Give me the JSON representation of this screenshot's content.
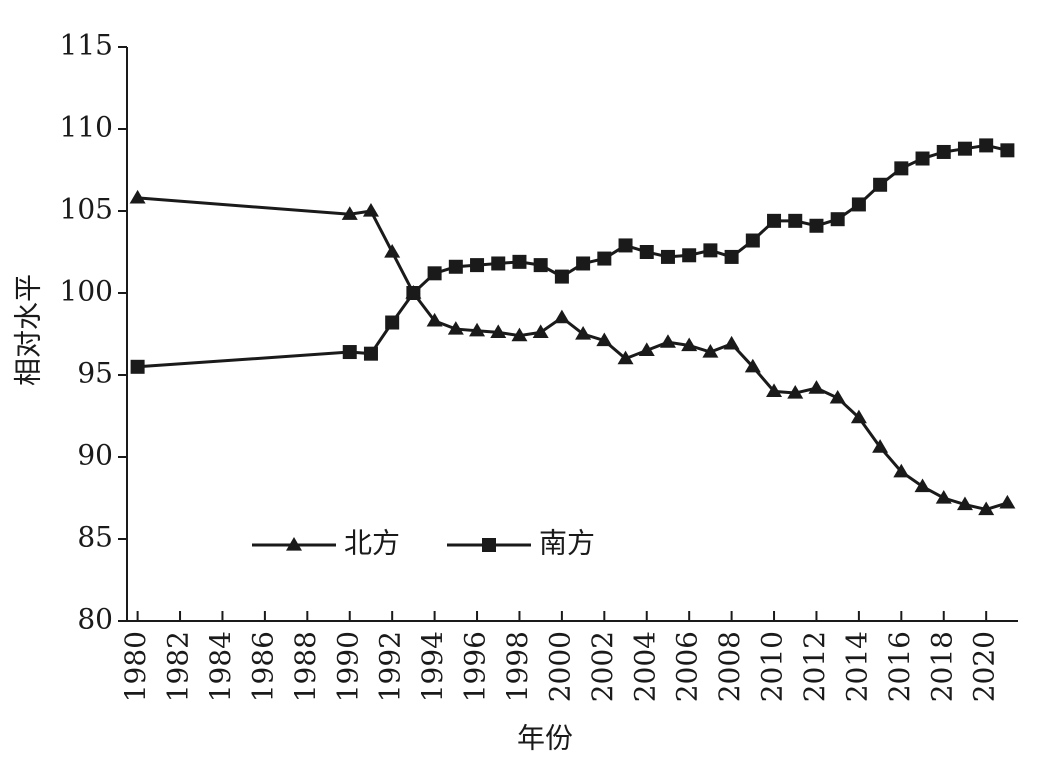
{
  "chart_data": {
    "type": "line",
    "x_label": "年份",
    "y_label": "相对水平",
    "x": [
      1980,
      1990,
      1991,
      1992,
      1993,
      1994,
      1995,
      1996,
      1997,
      1998,
      1999,
      2000,
      2001,
      2002,
      2003,
      2004,
      2005,
      2006,
      2007,
      2008,
      2009,
      2010,
      2011,
      2012,
      2013,
      2014,
      2015,
      2016,
      2017,
      2018,
      2019,
      2020,
      2021
    ],
    "series": [
      {
        "name": "北方",
        "color": "#1a1a1a",
        "marker": "triangle",
        "values": [
          105.8,
          104.8,
          105.0,
          102.5,
          100.0,
          98.3,
          97.8,
          97.7,
          97.6,
          97.4,
          97.6,
          98.5,
          97.5,
          97.1,
          96.0,
          96.5,
          97.0,
          96.8,
          96.4,
          96.9,
          95.5,
          94.0,
          93.9,
          94.2,
          93.6,
          92.4,
          90.6,
          89.1,
          88.2,
          87.5,
          87.1,
          86.8,
          87.2
        ]
      },
      {
        "name": "南方",
        "color": "#1a1a1a",
        "marker": "square",
        "values": [
          95.5,
          96.4,
          96.3,
          98.2,
          100.0,
          101.2,
          101.6,
          101.7,
          101.8,
          101.9,
          101.7,
          101.0,
          101.8,
          102.1,
          102.9,
          102.5,
          102.2,
          102.3,
          102.6,
          102.2,
          103.2,
          104.4,
          104.4,
          104.1,
          104.5,
          105.4,
          106.6,
          107.6,
          108.2,
          108.6,
          108.8,
          109.0,
          108.7
        ]
      }
    ],
    "xlim": [
      1979.5,
      2021.5
    ],
    "xticks": [
      1980,
      1982,
      1984,
      1986,
      1988,
      1990,
      1992,
      1994,
      1996,
      1998,
      2000,
      2002,
      2004,
      2006,
      2008,
      2010,
      2012,
      2014,
      2016,
      2018,
      2020
    ],
    "ylim": [
      80,
      115
    ],
    "yticks": [
      80,
      85,
      90,
      95,
      100,
      105,
      110,
      115
    ]
  }
}
